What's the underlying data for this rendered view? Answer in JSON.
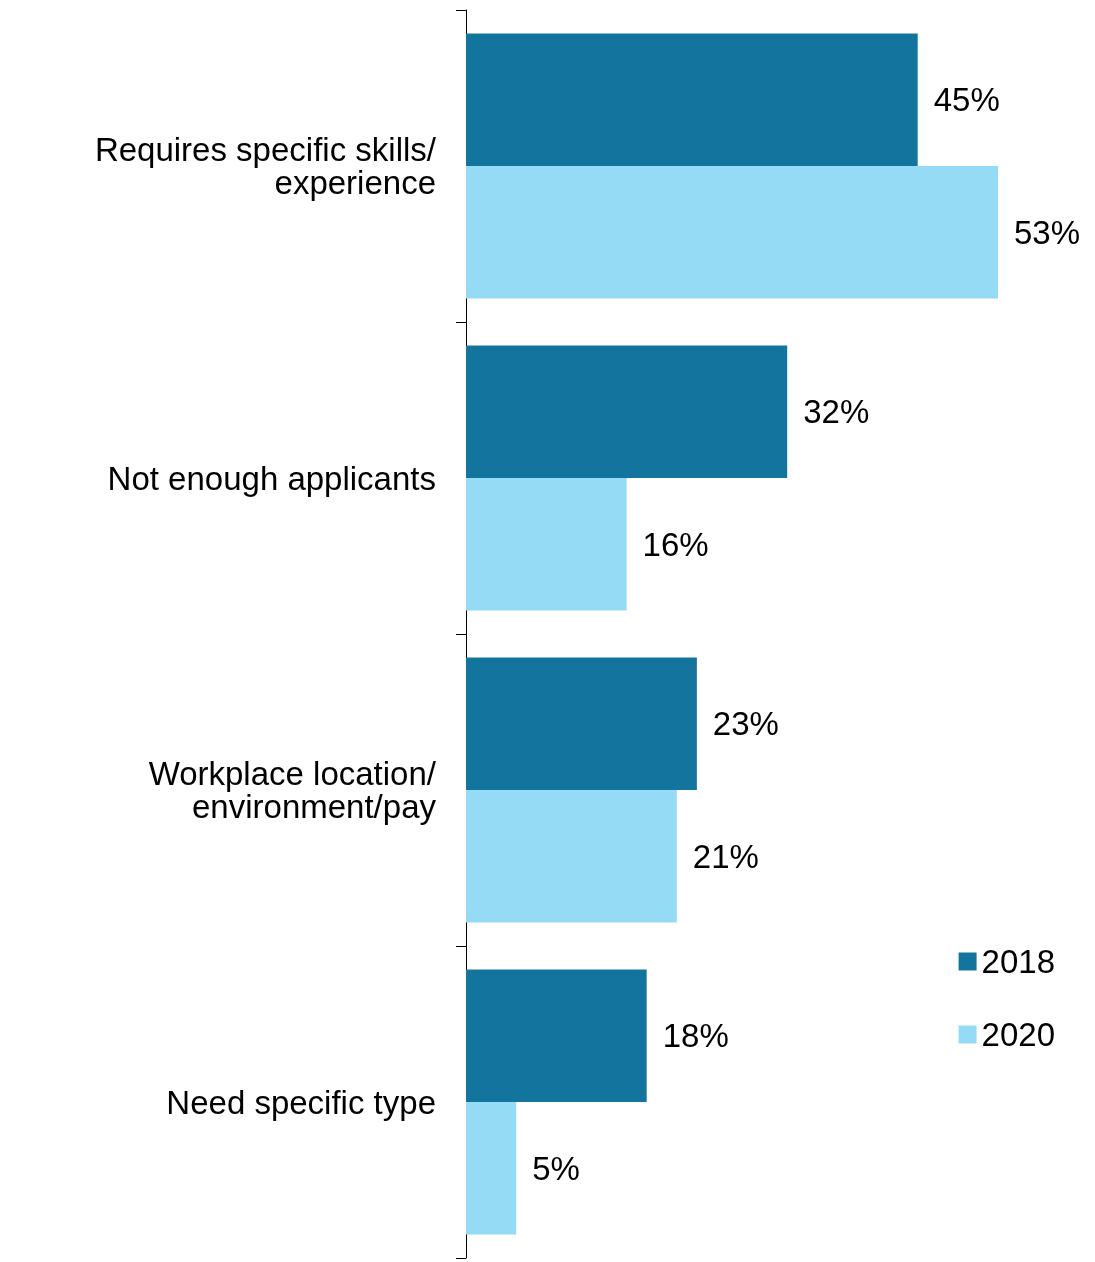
{
  "chart_data": {
    "type": "bar",
    "orientation": "horizontal",
    "categories": [
      "Requires specific skills/experience",
      "Not enough applicants",
      "Workplace location/environment/pay",
      "Need specific type"
    ],
    "series": [
      {
        "name": "2018",
        "color": "#13759e",
        "values": [
          45,
          32,
          23,
          18
        ],
        "value_labels": [
          "45%",
          "32%",
          "23%",
          "18%"
        ]
      },
      {
        "name": "2020",
        "color": "#95dbf5",
        "values": [
          53,
          16,
          21,
          5
        ],
        "value_labels": [
          "53%",
          "16%",
          "21%",
          "5%"
        ]
      }
    ],
    "legend": "right",
    "tick_labels": "y",
    "grid": false
  }
}
